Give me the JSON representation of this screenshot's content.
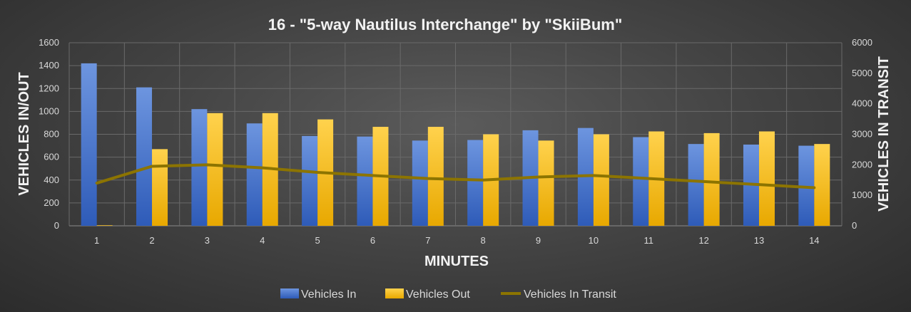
{
  "chart_data": {
    "type": "bar",
    "title": "16 - \"5-way Nautilus Interchange\" by \"SkiiBum\"",
    "xlabel": "MINUTES",
    "ylabel": "VEHICLES IN/OUT",
    "y2label": "VEHICLES IN TRANSIT",
    "categories": [
      "1",
      "2",
      "3",
      "4",
      "5",
      "6",
      "7",
      "8",
      "9",
      "10",
      "11",
      "12",
      "13",
      "14"
    ],
    "ylim": [
      0,
      1600
    ],
    "y_ticks": [
      0,
      200,
      400,
      600,
      800,
      1000,
      1200,
      1400,
      1600
    ],
    "y2lim": [
      0,
      6000
    ],
    "y2_ticks": [
      0,
      1000,
      2000,
      3000,
      4000,
      5000,
      6000
    ],
    "grid": true,
    "legend_position": "bottom",
    "series": [
      {
        "name": "Vehicles In",
        "type": "bar",
        "axis": "left",
        "color": "#4472C4",
        "values": [
          1420,
          1210,
          1020,
          895,
          785,
          780,
          745,
          750,
          835,
          855,
          775,
          715,
          710,
          700
        ]
      },
      {
        "name": "Vehicles Out",
        "type": "bar",
        "axis": "left",
        "color": "#FFC000",
        "values": [
          5,
          670,
          985,
          985,
          930,
          865,
          865,
          800,
          745,
          800,
          825,
          810,
          825,
          715
        ]
      },
      {
        "name": "Vehicles In Transit",
        "type": "line",
        "axis": "right",
        "color": "#8C7400",
        "values": [
          1400,
          1950,
          2000,
          1900,
          1750,
          1650,
          1550,
          1500,
          1600,
          1650,
          1550,
          1450,
          1350,
          1250
        ]
      }
    ]
  }
}
